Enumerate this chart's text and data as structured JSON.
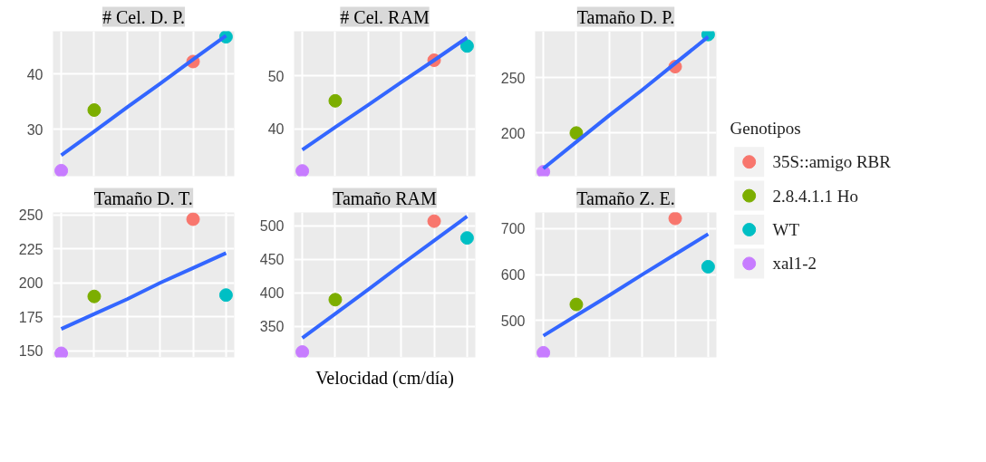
{
  "chart_data": [
    {
      "type": "scatter",
      "title": "# Cel. D. P.",
      "categories": [
        null,
        null,
        null,
        null,
        null,
        null
      ],
      "ylim": [
        21.5,
        47.8
      ],
      "yticks": [
        30,
        40
      ],
      "tick_labels": "y",
      "grid": true,
      "marker": "circle",
      "series": [
        {
          "color": "#f8766d",
          "values": [
            null,
            null,
            null,
            null,
            42.3,
            null
          ]
        },
        {
          "color": "#7cae00",
          "values": [
            null,
            33.5,
            null,
            null,
            null,
            null
          ]
        },
        {
          "color": "#00bfc4",
          "values": [
            null,
            null,
            null,
            null,
            null,
            46.8
          ]
        },
        {
          "color": "#c77cff",
          "values": [
            22.5,
            null,
            null,
            null,
            null,
            null
          ]
        },
        {
          "type": "line",
          "marker": "none",
          "color": "#3366ff",
          "values": [
            25.3,
            29.6,
            34.0,
            38.3,
            42.7,
            47
          ]
        }
      ]
    },
    {
      "type": "scatter",
      "title": "# Cel. RAM",
      "categories": [
        null,
        null,
        null,
        null,
        null,
        null
      ],
      "ylim": [
        31,
        58.5
      ],
      "yticks": [
        40,
        50
      ],
      "tick_labels": "y",
      "grid": true,
      "marker": "circle",
      "series": [
        {
          "color": "#f8766d",
          "values": [
            null,
            null,
            null,
            null,
            53,
            null
          ]
        },
        {
          "color": "#7cae00",
          "values": [
            null,
            45.3,
            null,
            null,
            null,
            null
          ]
        },
        {
          "color": "#00bfc4",
          "values": [
            null,
            null,
            null,
            null,
            null,
            55.7
          ]
        },
        {
          "color": "#c77cff",
          "values": [
            32,
            null,
            null,
            null,
            null,
            null
          ]
        },
        {
          "type": "line",
          "marker": "none",
          "color": "#3366ff",
          "values": [
            36,
            40.3,
            44.5,
            48.8,
            53.0,
            57.3
          ]
        }
      ]
    },
    {
      "type": "scatter",
      "title": "Tamaño D. P.",
      "categories": [
        null,
        null,
        null,
        null,
        null,
        null
      ],
      "ylim": [
        161,
        292
      ],
      "yticks": [
        200,
        250
      ],
      "tick_labels": "y",
      "grid": true,
      "marker": "circle",
      "series": [
        {
          "color": "#f8766d",
          "values": [
            null,
            null,
            null,
            null,
            260,
            null
          ]
        },
        {
          "color": "#7cae00",
          "values": [
            null,
            200,
            null,
            null,
            null,
            null
          ]
        },
        {
          "color": "#00bfc4",
          "values": [
            null,
            null,
            null,
            null,
            null,
            289
          ]
        },
        {
          "color": "#c77cff",
          "values": [
            165,
            null,
            null,
            null,
            null,
            null
          ]
        },
        {
          "type": "line",
          "marker": "none",
          "color": "#3366ff",
          "values": [
            168,
            192,
            216,
            239,
            263,
            287
          ]
        }
      ]
    },
    {
      "type": "scatter",
      "title": "Tamaño D. T.",
      "categories": [
        null,
        null,
        null,
        null,
        null,
        null
      ],
      "ylim": [
        145,
        252
      ],
      "yticks": [
        150,
        175,
        200,
        225,
        250
      ],
      "tick_labels": "y",
      "grid": true,
      "marker": "circle",
      "series": [
        {
          "color": "#f8766d",
          "values": [
            null,
            null,
            null,
            null,
            247,
            null
          ]
        },
        {
          "color": "#7cae00",
          "values": [
            null,
            190,
            null,
            null,
            null,
            null
          ]
        },
        {
          "color": "#00bfc4",
          "values": [
            null,
            null,
            null,
            null,
            null,
            191
          ]
        },
        {
          "color": "#c77cff",
          "values": [
            148,
            null,
            null,
            null,
            null,
            null
          ]
        },
        {
          "type": "line",
          "marker": "none",
          "color": "#3366ff",
          "values": [
            166,
            177,
            188,
            200,
            211,
            222
          ]
        }
      ]
    },
    {
      "type": "scatter",
      "title": "Tamaño RAM",
      "xlabel": "Velocidad (cm/día)",
      "categories": [
        null,
        null,
        null,
        null,
        null,
        null
      ],
      "ylim": [
        304,
        520
      ],
      "yticks": [
        350,
        400,
        450,
        500
      ],
      "tick_labels": "y",
      "grid": true,
      "marker": "circle",
      "series": [
        {
          "color": "#f8766d",
          "values": [
            null,
            null,
            null,
            null,
            507,
            null
          ]
        },
        {
          "color": "#7cae00",
          "values": [
            null,
            390,
            null,
            null,
            null,
            null
          ]
        },
        {
          "color": "#00bfc4",
          "values": [
            null,
            null,
            null,
            null,
            null,
            482
          ]
        },
        {
          "color": "#c77cff",
          "values": [
            312,
            null,
            null,
            null,
            null,
            null
          ]
        },
        {
          "type": "line",
          "marker": "none",
          "color": "#3366ff",
          "values": [
            333,
            369,
            405,
            442,
            478,
            514
          ]
        }
      ]
    },
    {
      "type": "scatter",
      "title": "Tamaño Z. E.",
      "legend_title": "Genotipos",
      "legend": "right",
      "categories": [
        null,
        null,
        null,
        null,
        null,
        null
      ],
      "ylim": [
        420,
        735
      ],
      "yticks": [
        500,
        600,
        700
      ],
      "tick_labels": "y",
      "grid": true,
      "marker": "circle",
      "series": [
        {
          "name": "35S::amigo RBR",
          "color": "#f8766d",
          "values": [
            null,
            null,
            null,
            null,
            722,
            null
          ]
        },
        {
          "name": "2.8.4.1.1  Ho",
          "color": "#7cae00",
          "values": [
            null,
            535,
            null,
            null,
            null,
            null
          ]
        },
        {
          "name": " WT",
          "color": "#00bfc4",
          "values": [
            null,
            null,
            null,
            null,
            null,
            617
          ]
        },
        {
          "name": "xal1-2",
          "color": "#c77cff",
          "values": [
            430,
            null,
            null,
            null,
            null,
            null
          ]
        },
        {
          "type": "line",
          "marker": "none",
          "color": "#3366ff",
          "values": [
            467,
            511,
            555,
            600,
            644,
            688
          ]
        }
      ]
    }
  ]
}
